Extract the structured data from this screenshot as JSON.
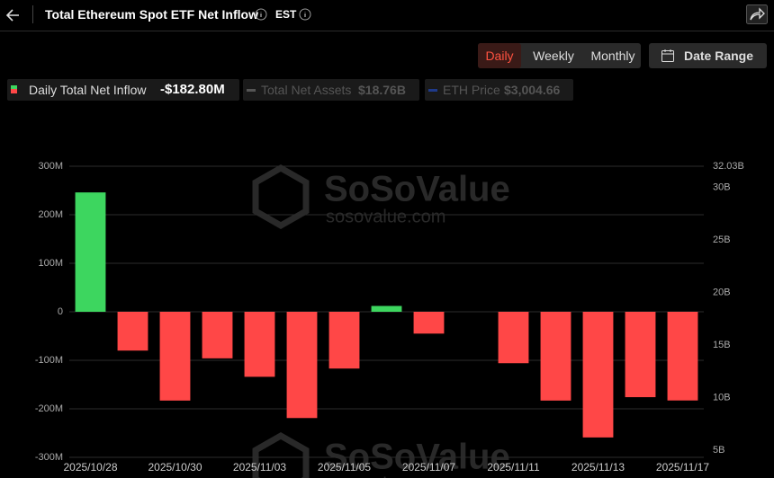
{
  "toolbar": {
    "title": "Total Ethereum Spot ETF Net Inflow",
    "timezone": "EST",
    "periods": [
      "Daily",
      "Weekly",
      "Monthly"
    ],
    "selected_period": 0,
    "date_range": "Date Range"
  },
  "chart_data": {
    "type": "bar",
    "categories": [
      "2025/10/28",
      null,
      "2025/10/30",
      null,
      "2025/11/03",
      null,
      "2025/11/05",
      null,
      "2025/11/07",
      null,
      "2025/11/11",
      null,
      "2025/11/13",
      null,
      "2025/11/17"
    ],
    "series": [
      {
        "name": "Daily Total Net Inflow",
        "latest": "-$182.80M",
        "positive_color": "#3dd65f",
        "negative_color": "#ff4747",
        "values": [
          246,
          -80,
          -183,
          -96,
          -134,
          -219,
          -117,
          12,
          -45,
          null,
          -106,
          -183,
          -259,
          -176,
          -182.8
        ]
      }
    ],
    "other_series": [
      {
        "name": "Total Net Assets",
        "latest": "$18.76B",
        "color": "#555555",
        "axis": "y2"
      },
      {
        "name": "ETH Price",
        "latest": "$3,004.66",
        "color": "#1f3a8a"
      }
    ],
    "ylim": [
      -300,
      300
    ],
    "yticks": [
      {
        "value": 300,
        "label": "300M"
      },
      {
        "value": 200,
        "label": "200M"
      },
      {
        "value": 100,
        "label": "100M"
      },
      0,
      {
        "value": -100,
        "label": "-100M"
      },
      {
        "value": -200,
        "label": "-200M"
      },
      {
        "value": -300,
        "label": "-300M"
      }
    ],
    "y2lim": [
      4.33,
      32.03
    ],
    "y2ticks": [
      {
        "value": 32.03,
        "label": "32.03B"
      },
      {
        "value": 30,
        "label": "30B"
      },
      {
        "value": 25,
        "label": "25B"
      },
      {
        "value": 20,
        "label": "20B"
      },
      {
        "value": 15,
        "label": "15B"
      },
      {
        "value": 10,
        "label": "10B"
      },
      {
        "value": 5,
        "label": "5B"
      }
    ],
    "grid": true,
    "watermark": [
      "SoSoValue",
      "sosovalue.com"
    ]
  }
}
